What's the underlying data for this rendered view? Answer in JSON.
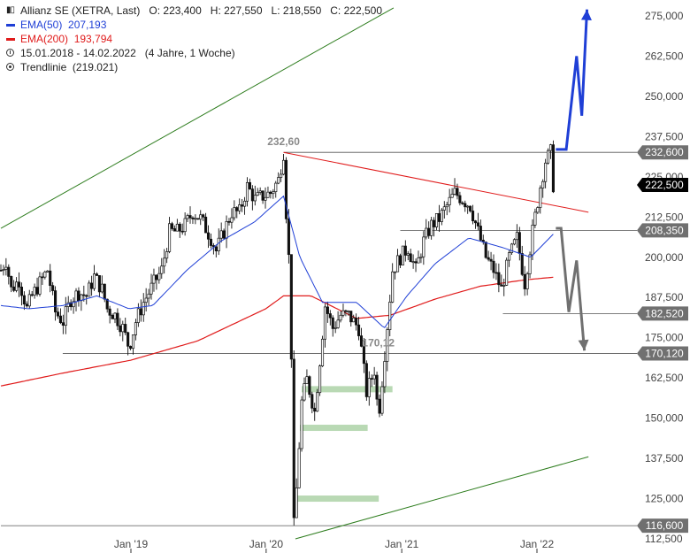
{
  "legend": {
    "instrument": "Allianz SE (XETRA, Last)",
    "ohlc": {
      "o_label": "O:",
      "o": "223,400",
      "h_label": "H:",
      "h": "227,550",
      "l_label": "L:",
      "l": "218,550",
      "c_label": "C:",
      "c": "222,500"
    },
    "ema50": {
      "label": "EMA(50)",
      "value": "207,193",
      "color": "#1f3fd6"
    },
    "ema200": {
      "label": "EMA(200)",
      "value": "193,794",
      "color": "#e01b1b"
    },
    "period": {
      "range": "15.01.2018 - 14.02.2022",
      "length": "(4 Jahre, 1 Woche)"
    },
    "trendline": {
      "label": "Trendlinie",
      "value": "(219.021)"
    }
  },
  "chart_data": {
    "type": "candlestick",
    "x_range": [
      "2018-01-15",
      "2022-02-14"
    ],
    "ylim": [
      112.5,
      277.5
    ],
    "y_ticks": [
      112.5,
      125,
      137.5,
      150,
      162.5,
      175,
      187.5,
      200,
      212.5,
      225,
      237.5,
      250,
      262.5,
      275
    ],
    "y_tick_labels": [
      "112,500",
      "125,000",
      "137,500",
      "150,000",
      "162,500",
      "175,000",
      "187,500",
      "200,000",
      "212,500",
      "225,000",
      "237,500",
      "250,000",
      "262,500",
      "275,000"
    ],
    "x_ticks": [
      {
        "date": "2019-01-01",
        "label": "Jan '19"
      },
      {
        "date": "2020-01-01",
        "label": "Jan '20"
      },
      {
        "date": "2021-01-01",
        "label": "Jan '21"
      },
      {
        "date": "2022-01-01",
        "label": "Jan '22"
      }
    ],
    "price_path": [
      [
        "2018-01-15",
        196
      ],
      [
        "2018-01-29",
        199
      ],
      [
        "2018-02-12",
        190
      ],
      [
        "2018-03-05",
        193
      ],
      [
        "2018-03-26",
        184
      ],
      [
        "2018-04-09",
        188
      ],
      [
        "2018-04-30",
        192
      ],
      [
        "2018-05-21",
        196
      ],
      [
        "2018-06-11",
        183
      ],
      [
        "2018-07-02",
        180
      ],
      [
        "2018-07-23",
        187
      ],
      [
        "2018-08-13",
        189
      ],
      [
        "2018-09-03",
        188
      ],
      [
        "2018-09-24",
        194
      ],
      [
        "2018-10-15",
        190
      ],
      [
        "2018-10-29",
        184
      ],
      [
        "2018-11-19",
        182
      ],
      [
        "2018-12-10",
        178
      ],
      [
        "2018-12-27",
        172
      ],
      [
        "2019-01-14",
        180
      ],
      [
        "2019-02-04",
        186
      ],
      [
        "2019-03-04",
        192
      ],
      [
        "2019-03-25",
        196
      ],
      [
        "2019-04-15",
        208
      ],
      [
        "2019-05-06",
        208
      ],
      [
        "2019-05-27",
        210
      ],
      [
        "2019-06-17",
        214
      ],
      [
        "2019-07-08",
        212
      ],
      [
        "2019-08-05",
        206
      ],
      [
        "2019-08-19",
        202
      ],
      [
        "2019-09-09",
        208
      ],
      [
        "2019-09-30",
        214
      ],
      [
        "2019-10-21",
        214
      ],
      [
        "2019-11-11",
        222
      ],
      [
        "2019-12-02",
        218
      ],
      [
        "2019-12-23",
        219
      ],
      [
        "2020-01-13",
        220
      ],
      [
        "2020-02-03",
        224
      ],
      [
        "2020-02-17",
        232.6
      ],
      [
        "2020-02-24",
        214
      ],
      [
        "2020-03-02",
        200
      ],
      [
        "2020-03-09",
        170
      ],
      [
        "2020-03-16",
        116.6
      ],
      [
        "2020-03-23",
        128
      ],
      [
        "2020-04-06",
        155
      ],
      [
        "2020-04-20",
        162
      ],
      [
        "2020-05-11",
        152
      ],
      [
        "2020-05-25",
        168
      ],
      [
        "2020-06-08",
        185
      ],
      [
        "2020-06-29",
        178
      ],
      [
        "2020-07-20",
        182
      ],
      [
        "2020-08-10",
        182
      ],
      [
        "2020-09-07",
        178
      ],
      [
        "2020-09-28",
        158
      ],
      [
        "2020-10-19",
        165
      ],
      [
        "2020-10-30",
        150
      ],
      [
        "2020-11-16",
        170.12
      ],
      [
        "2020-12-07",
        196
      ],
      [
        "2020-12-28",
        200
      ],
      [
        "2021-01-18",
        203
      ],
      [
        "2021-02-08",
        196
      ],
      [
        "2021-03-01",
        205
      ],
      [
        "2021-03-22",
        210
      ],
      [
        "2021-04-12",
        212
      ],
      [
        "2021-05-03",
        216
      ],
      [
        "2021-05-24",
        220
      ],
      [
        "2021-06-14",
        218
      ],
      [
        "2021-07-05",
        216
      ],
      [
        "2021-07-26",
        208
      ],
      [
        "2021-08-16",
        200
      ],
      [
        "2021-09-06",
        196
      ],
      [
        "2021-09-27",
        190
      ],
      [
        "2021-10-18",
        200
      ],
      [
        "2021-11-08",
        206
      ],
      [
        "2021-11-29",
        192
      ],
      [
        "2021-12-20",
        208
      ],
      [
        "2022-01-10",
        222
      ],
      [
        "2022-01-24",
        230
      ],
      [
        "2022-02-07",
        232.6
      ],
      [
        "2022-02-14",
        222.5
      ]
    ],
    "ema50_path": [
      [
        "2018-01-15",
        185
      ],
      [
        "2018-04-01",
        184
      ],
      [
        "2018-07-01",
        185
      ],
      [
        "2018-10-01",
        188
      ],
      [
        "2018-12-27",
        184
      ],
      [
        "2019-03-01",
        185
      ],
      [
        "2019-06-01",
        196
      ],
      [
        "2019-09-01",
        205
      ],
      [
        "2019-12-01",
        211
      ],
      [
        "2020-02-17",
        219
      ],
      [
        "2020-04-01",
        200
      ],
      [
        "2020-06-01",
        186
      ],
      [
        "2020-09-01",
        186
      ],
      [
        "2020-11-15",
        178
      ],
      [
        "2021-01-15",
        188
      ],
      [
        "2021-04-01",
        198
      ],
      [
        "2021-07-01",
        206
      ],
      [
        "2021-10-01",
        203
      ],
      [
        "2021-12-15",
        200
      ],
      [
        "2022-02-14",
        207.193
      ]
    ],
    "ema200_path": [
      [
        "2018-01-15",
        160
      ],
      [
        "2018-07-01",
        164
      ],
      [
        "2018-12-31",
        168
      ],
      [
        "2019-06-30",
        174
      ],
      [
        "2019-12-31",
        184
      ],
      [
        "2020-02-17",
        188
      ],
      [
        "2020-05-01",
        188
      ],
      [
        "2020-09-01",
        181
      ],
      [
        "2020-12-01",
        182
      ],
      [
        "2021-04-01",
        187
      ],
      [
        "2021-08-01",
        191
      ],
      [
        "2021-12-01",
        193
      ],
      [
        "2022-02-14",
        193.794
      ]
    ],
    "horizontal_levels": [
      {
        "value": 232.6,
        "label": "232,600",
        "from": "2020-02-17",
        "badge": true
      },
      {
        "value": 222.5,
        "label": "222,500",
        "current": true,
        "badge": true
      },
      {
        "value": 208.35,
        "label": "208,350",
        "from": "2020-12-28",
        "badge": true
      },
      {
        "value": 182.52,
        "label": "182,520",
        "from": "2021-10-01",
        "badge": true
      },
      {
        "value": 170.12,
        "label": "170,120",
        "from": "2018-07-01",
        "badge": true
      },
      {
        "value": 116.6,
        "label": "116,600",
        "from": "2018-01-15",
        "badge": true
      }
    ],
    "annotations": [
      {
        "text": "232,60",
        "date": "2020-02-17",
        "value": 232.6
      },
      {
        "text": "170,12",
        "date": "2020-10-30",
        "value": 170.12
      }
    ],
    "trendlines": [
      {
        "color": "#e01b1b",
        "p1": [
          "2020-02-17",
          232.6
        ],
        "p2": [
          "2022-05-20",
          214
        ]
      },
      {
        "color": "#2e7d1e",
        "p1": [
          "2018-01-15",
          209
        ],
        "p2": [
          "2020-12-10",
          277.5
        ]
      },
      {
        "color": "#2e7d1e",
        "p1": [
          "2020-03-20",
          112.5
        ],
        "p2": [
          "2022-05-20",
          138
        ]
      }
    ],
    "gap_zones": [
      {
        "from": "2020-04-06",
        "to": "2020-12-07",
        "value": 159,
        "color": "#b9d9b4"
      },
      {
        "from": "2020-04-01",
        "to": "2020-10-01",
        "value": 147,
        "color": "#b9d9b4"
      },
      {
        "from": "2020-03-23",
        "to": "2020-10-31",
        "value": 125,
        "color": "#b9d9b4"
      }
    ],
    "scenario_arrows": [
      {
        "color": "#1f3fd6",
        "points": [
          [
            "2022-02-21",
            233.5
          ],
          [
            "2022-03-21",
            233.5
          ],
          [
            "2022-04-18",
            262.5
          ],
          [
            "2022-05-02",
            244
          ],
          [
            "2022-05-16",
            277
          ]
        ]
      },
      {
        "color": "#707070",
        "points": [
          [
            "2022-02-21",
            209
          ],
          [
            "2022-03-07",
            209
          ],
          [
            "2022-03-28",
            183
          ],
          [
            "2022-04-18",
            199
          ],
          [
            "2022-05-09",
            171
          ]
        ]
      }
    ]
  }
}
